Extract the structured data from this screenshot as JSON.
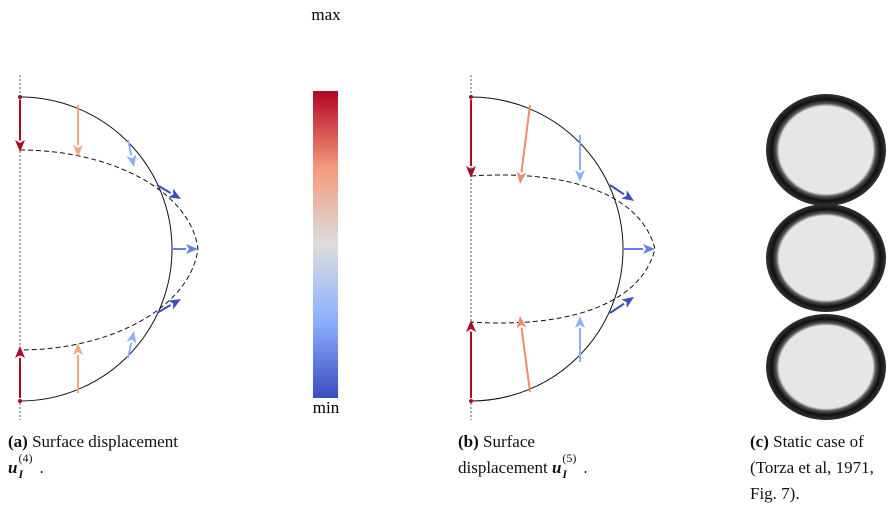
{
  "colorbar": {
    "max_label": "max",
    "min_label": "min"
  },
  "panels": [
    {
      "label": "(a)",
      "text": "Surface displacement",
      "symbol": "u",
      "subscript": "I",
      "superscript": "(4)",
      "end": "."
    },
    {
      "label": "(b)",
      "text": "Surface displacement",
      "symbol": "u",
      "subscript": "I",
      "superscript": "(5)",
      "end": "."
    },
    {
      "label": "(c)",
      "text": "Static case of (Torza et al, 1971, Fig. 7)."
    }
  ]
}
